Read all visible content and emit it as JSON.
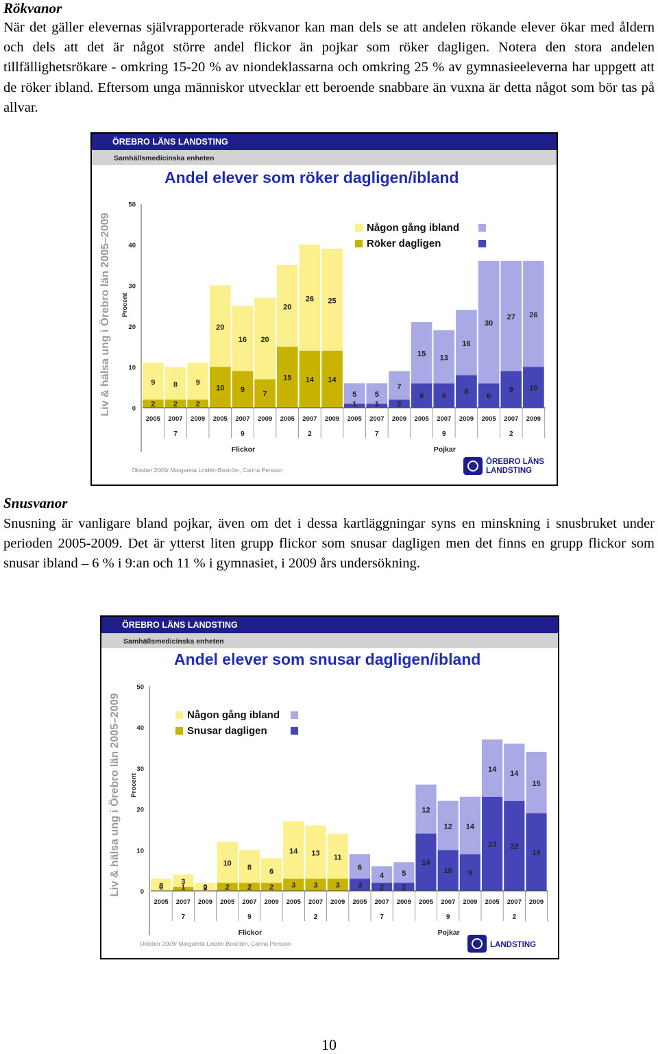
{
  "section1": {
    "title": "Rökvanor",
    "paragraph": "När det gäller elevernas självrapporterade rökvanor kan man dels se att andelen rökande elever ökar med åldern och dels att det är något större andel flickor än pojkar som röker dagligen. Notera den stora andelen tillfällighetsrökare - omkring 15-20 % av niondeklassarna och omkring 25 % av gymnasieeleverna har uppgett att de röker ibland. Eftersom unga människor utvecklar ett beroende snabbare än vuxna är detta något som bör tas på allvar."
  },
  "section2": {
    "title": "Snusvanor",
    "paragraph": "Snusning är vanligare bland pojkar, även om det i dessa kartläggningar syns en minskning i snusbruket under perioden 2005-2009. Det är ytterst liten grupp flickor som snusar dagligen men det finns en grupp flickor som snusar ibland – 6 % i 9:an och 11 % i gymnasiet, i 2009 års undersökning."
  },
  "page_number": "10",
  "colors": {
    "header_blue": "#1d1d8c",
    "header_gray": "#d2d2d2",
    "title_blue": "#1f2cb8",
    "flickor_ibland": "#fbf08c",
    "flickor_daglig": "#c8b400",
    "pojkar_ibland": "#a9a9e6",
    "pojkar_daglig": "#4545b8"
  },
  "chart_data": [
    {
      "type": "bar",
      "stacked": true,
      "org": "ÖREBRO LÄNS LANDSTING",
      "unit": "Samhällsmedicinska enheten",
      "title": "Andel elever som röker dagligen/ibland",
      "side_text": "Liv & hälsa ung i Örebro län 2005–2009",
      "ylabel": "Procent",
      "ylim": [
        0,
        50
      ],
      "yticks": [
        "0",
        "10",
        "20",
        "30",
        "40",
        "50"
      ],
      "legend": [
        "Någon gång ibland",
        "Röker dagligen"
      ],
      "footer": "Oktober 2009/ Margareta Lindén-Boström, Carina Persson",
      "logo_text": [
        "ÖREBRO LÄNS",
        "LANDSTING"
      ],
      "groups": [
        {
          "sex": "Flickor",
          "grade": "7",
          "years": [
            "2005",
            "2007",
            "2009"
          ],
          "daily": [
            2,
            2,
            2
          ],
          "occasional": [
            9,
            8,
            9
          ]
        },
        {
          "sex": "Flickor",
          "grade": "9",
          "years": [
            "2005",
            "2007",
            "2009"
          ],
          "daily": [
            10,
            9,
            7
          ],
          "occasional": [
            20,
            16,
            20
          ]
        },
        {
          "sex": "Flickor",
          "grade": "2",
          "years": [
            "2005",
            "2007",
            "2009"
          ],
          "daily": [
            15,
            14,
            14
          ],
          "occasional": [
            20,
            26,
            25
          ]
        },
        {
          "sex": "Pojkar",
          "grade": "7",
          "years": [
            "2005",
            "2007",
            "2009"
          ],
          "daily": [
            1,
            1,
            2
          ],
          "occasional": [
            5,
            5,
            7
          ]
        },
        {
          "sex": "Pojkar",
          "grade": "9",
          "years": [
            "2005",
            "2007",
            "2009"
          ],
          "daily": [
            6,
            6,
            8
          ],
          "occasional": [
            15,
            13,
            16
          ]
        },
        {
          "sex": "Pojkar",
          "grade": "2",
          "years": [
            "2005",
            "2007",
            "2009"
          ],
          "daily": [
            6,
            9,
            10
          ],
          "occasional": [
            30,
            27,
            26
          ]
        }
      ],
      "sex_labels": [
        "Flickor",
        "Pojkar"
      ]
    },
    {
      "type": "bar",
      "stacked": true,
      "org": "ÖREBRO LÄNS LANDSTING",
      "unit": "Samhällsmedicinska enheten",
      "title": "Andel elever som snusar dagligen/ibland",
      "side_text": "Liv & hälsa ung i Örebro län 2005–2009",
      "ylabel": "Procent",
      "ylim": [
        0,
        50
      ],
      "yticks": [
        "0",
        "10",
        "20",
        "30",
        "40",
        "50"
      ],
      "legend": [
        "Någon gång ibland",
        "Snusar dagligen"
      ],
      "footer": "Oktober 2009/ Margareta Lindén-Boström, Carina Persson",
      "logo_text": [
        "LANDSTING"
      ],
      "groups": [
        {
          "sex": "Flickor",
          "grade": "7",
          "years": [
            "2005",
            "2007",
            "2009"
          ],
          "daily": [
            0,
            1,
            0
          ],
          "occasional": [
            3,
            3,
            2
          ]
        },
        {
          "sex": "Flickor",
          "grade": "9",
          "years": [
            "2005",
            "2007",
            "2009"
          ],
          "daily": [
            2,
            2,
            2
          ],
          "occasional": [
            10,
            8,
            6
          ]
        },
        {
          "sex": "Flickor",
          "grade": "2",
          "years": [
            "2005",
            "2007",
            "2009"
          ],
          "daily": [
            3,
            3,
            3
          ],
          "occasional": [
            14,
            13,
            11
          ]
        },
        {
          "sex": "Pojkar",
          "grade": "7",
          "years": [
            "2005",
            "2007",
            "2009"
          ],
          "daily": [
            3,
            2,
            2
          ],
          "occasional": [
            6,
            4,
            5
          ]
        },
        {
          "sex": "Pojkar",
          "grade": "9",
          "years": [
            "2005",
            "2007",
            "2009"
          ],
          "daily": [
            14,
            10,
            9
          ],
          "occasional": [
            12,
            12,
            14
          ]
        },
        {
          "sex": "Pojkar",
          "grade": "2",
          "years": [
            "2005",
            "2007",
            "2009"
          ],
          "daily": [
            23,
            22,
            19
          ],
          "occasional": [
            14,
            14,
            15
          ]
        }
      ],
      "sex_labels": [
        "Flickor",
        "Pojkar"
      ]
    }
  ]
}
